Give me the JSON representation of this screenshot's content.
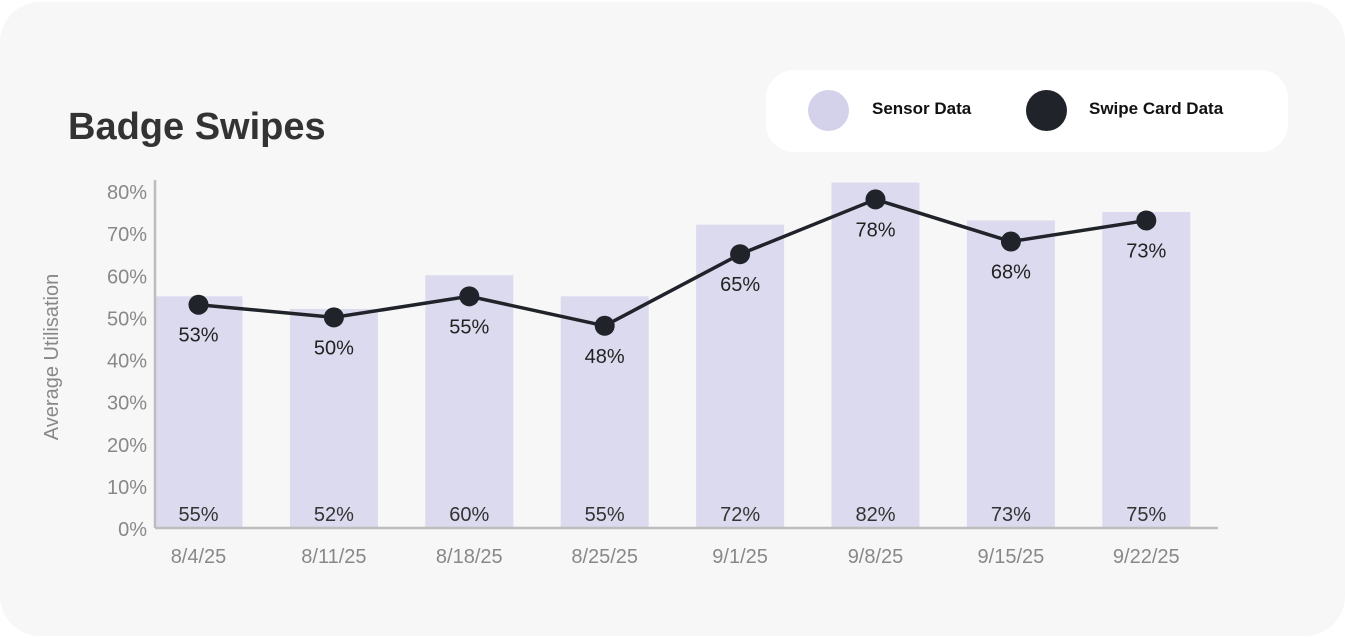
{
  "chart_data": {
    "type": "bar",
    "title": "Badge Swipes",
    "xlabel": "",
    "ylabel": "Average Utilisation",
    "ylim": [
      0,
      80
    ],
    "yticks": [
      "0%",
      "10%",
      "20%",
      "30%",
      "40%",
      "50%",
      "60%",
      "70%",
      "80%"
    ],
    "yticks_values": [
      0,
      10,
      20,
      30,
      40,
      50,
      60,
      70,
      80
    ],
    "categories": [
      "8/4/25",
      "8/11/25",
      "8/18/25",
      "8/25/25",
      "9/1/25",
      "9/8/25",
      "9/15/25",
      "9/22/25"
    ],
    "series": [
      {
        "name": "Sensor Data",
        "type": "bar",
        "color": "#dcdaee",
        "values": [
          55,
          52,
          60,
          55,
          72,
          82,
          73,
          75
        ],
        "labels": [
          "55%",
          "52%",
          "60%",
          "55%",
          "72%",
          "82%",
          "73%",
          "75%"
        ]
      },
      {
        "name": "Swipe Card Data",
        "type": "line",
        "color": "#20232a",
        "values": [
          53,
          50,
          55,
          48,
          65,
          78,
          68,
          73
        ],
        "labels": [
          "53%",
          "50%",
          "55%",
          "48%",
          "65%",
          "78%",
          "68%",
          "73%"
        ]
      }
    ],
    "legend_position": "top-right",
    "grid": false
  }
}
